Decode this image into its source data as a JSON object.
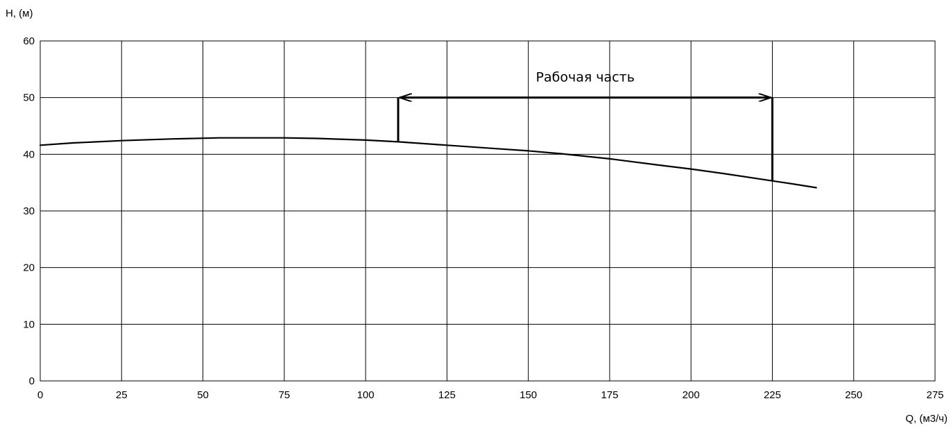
{
  "chart_data": {
    "type": "line",
    "title": "",
    "xlabel": "Q, (м3/ч)",
    "ylabel": "H, (м)",
    "xlim": [
      0,
      275
    ],
    "ylim": [
      0,
      60
    ],
    "x_ticks": [
      0,
      25,
      50,
      75,
      100,
      125,
      150,
      175,
      200,
      225,
      250,
      275
    ],
    "y_ticks": [
      0,
      10,
      20,
      30,
      40,
      50,
      60
    ],
    "grid": true,
    "series": [
      {
        "name": "",
        "color": "#000000",
        "x": [
          0,
          10,
          25,
          40,
          55,
          75,
          85,
          100,
          110,
          125,
          140,
          150,
          160,
          175,
          190,
          200,
          210,
          225,
          232,
          238.5
        ],
        "y": [
          41.6,
          42.0,
          42.4,
          42.7,
          42.9,
          42.9,
          42.8,
          42.5,
          42.2,
          41.6,
          41.0,
          40.6,
          40.1,
          39.2,
          38.1,
          37.4,
          36.6,
          35.3,
          34.7,
          34.1
        ]
      }
    ],
    "annotation": {
      "text": "Рабочая часть",
      "x_start": 110,
      "x_end": 225,
      "arrow_y": 50,
      "drop_start_y": 42.2,
      "drop_end_y": 35.3
    }
  }
}
